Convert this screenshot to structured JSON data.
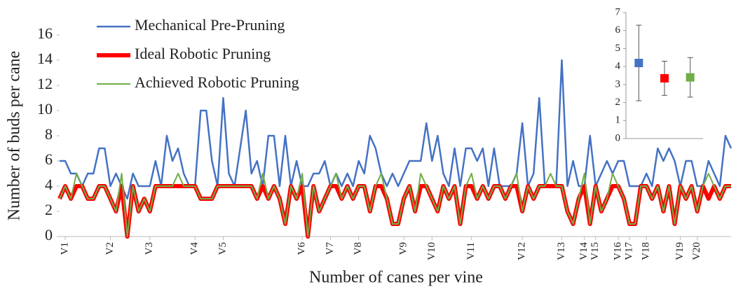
{
  "chart_data": [
    {
      "type": "line",
      "xlabel": "Number of canes per vine",
      "ylabel": "Number of buds per cane",
      "ylim": [
        0,
        16
      ],
      "yticks": [
        0,
        2,
        4,
        6,
        8,
        10,
        12,
        14,
        16
      ],
      "categories": [
        null,
        "V1",
        null,
        null,
        null,
        null,
        null,
        null,
        null,
        "V2",
        null,
        null,
        null,
        null,
        null,
        null,
        "V3",
        null,
        null,
        null,
        null,
        null,
        null,
        null,
        "V4",
        null,
        null,
        null,
        null,
        "V5",
        null,
        null,
        null,
        null,
        null,
        null,
        null,
        null,
        null,
        null,
        null,
        null,
        null,
        "V6",
        null,
        null,
        null,
        null,
        "V7",
        null,
        null,
        null,
        null,
        "V8",
        null,
        null,
        null,
        null,
        null,
        null,
        null,
        "V9",
        null,
        null,
        null,
        null,
        "V10",
        null,
        null,
        null,
        null,
        null,
        null,
        "V11",
        null,
        null,
        null,
        null,
        null,
        null,
        null,
        null,
        "V12",
        null,
        null,
        null,
        null,
        null,
        null,
        "V13",
        null,
        null,
        null,
        "V14",
        null,
        "V15",
        null,
        null,
        null,
        "V16",
        null,
        "V17",
        null,
        null,
        "V18",
        null,
        null,
        null,
        null,
        null,
        "V19",
        null,
        null,
        "V20",
        null,
        null,
        null,
        null,
        null,
        null
      ],
      "legend": "top-left",
      "series": [
        {
          "name": "Mechanical Pre-Pruning",
          "color": "#4472c4",
          "width": 2.5,
          "values": [
            6,
            6,
            5,
            5,
            4,
            5,
            5,
            7,
            7,
            4,
            5,
            4,
            3,
            5,
            4,
            4,
            4,
            6,
            4,
            8,
            6,
            7,
            5,
            4,
            4,
            10,
            10,
            6,
            4,
            11,
            5,
            4,
            7,
            10,
            5,
            6,
            4,
            8,
            8,
            4,
            8,
            4,
            6,
            4,
            4,
            5,
            5,
            6,
            4,
            5,
            4,
            5,
            4,
            6,
            5,
            8,
            7,
            5,
            4,
            5,
            4,
            5,
            6,
            6,
            6,
            9,
            6,
            8,
            5,
            4,
            7,
            4,
            7,
            7,
            6,
            7,
            4,
            7,
            4,
            4,
            4,
            5,
            9,
            4,
            5,
            11,
            4,
            4,
            4,
            14,
            4,
            6,
            4,
            4,
            8,
            4,
            5,
            6,
            5,
            6,
            6,
            4,
            4,
            4,
            5,
            4,
            7,
            6,
            7,
            6,
            4,
            6,
            6,
            4,
            4,
            6,
            5,
            4,
            8,
            7
          ]
        },
        {
          "name": "Ideal Robotic Pruning",
          "color": "#ff0000",
          "width": 6,
          "values": [
            3,
            4,
            3,
            4,
            4,
            3,
            3,
            4,
            4,
            3,
            2,
            4,
            0,
            4,
            2,
            3,
            2,
            4,
            4,
            4,
            4,
            4,
            4,
            4,
            4,
            3,
            3,
            3,
            4,
            4,
            4,
            4,
            4,
            4,
            4,
            3,
            4,
            3,
            4,
            3,
            1,
            4,
            3,
            4,
            0,
            4,
            2,
            3,
            4,
            4,
            3,
            4,
            3,
            4,
            4,
            2,
            4,
            4,
            3,
            1,
            1,
            3,
            4,
            2,
            4,
            4,
            3,
            2,
            4,
            3,
            4,
            1,
            4,
            4,
            3,
            4,
            3,
            4,
            4,
            3,
            4,
            4,
            2,
            4,
            3,
            4,
            4,
            4,
            4,
            4,
            2,
            1,
            3,
            4,
            1,
            4,
            2,
            3,
            4,
            4,
            3,
            1,
            1,
            4,
            4,
            3,
            4,
            2,
            4,
            1,
            4,
            3,
            4,
            2,
            4,
            3,
            4,
            3,
            4,
            4
          ]
        },
        {
          "name": "Achieved Robotic Pruning",
          "color": "#70ad47",
          "width": 2,
          "values": [
            3,
            4,
            3,
            5,
            4,
            3,
            3,
            4,
            4,
            3,
            2,
            5,
            0,
            4,
            2,
            3,
            2,
            4,
            4,
            4,
            4,
            5,
            4,
            4,
            4,
            3,
            3,
            3,
            4,
            4,
            4,
            4,
            4,
            4,
            4,
            3,
            5,
            3,
            4,
            3,
            1,
            4,
            3,
            5,
            0,
            4,
            2,
            3,
            4,
            5,
            3,
            4,
            3,
            4,
            4,
            2,
            4,
            5,
            3,
            1,
            1,
            3,
            4,
            2,
            5,
            4,
            3,
            2,
            4,
            3,
            4,
            1,
            4,
            5,
            3,
            4,
            3,
            4,
            4,
            3,
            4,
            5,
            2,
            4,
            3,
            4,
            4,
            5,
            4,
            4,
            2,
            1,
            3,
            5,
            1,
            4,
            2,
            3,
            5,
            4,
            3,
            1,
            1,
            4,
            4,
            3,
            4,
            2,
            4,
            1,
            4,
            3,
            4,
            2,
            4,
            5,
            4,
            3,
            4,
            4
          ]
        }
      ]
    },
    {
      "type": "errorbar",
      "ylim": [
        0,
        7
      ],
      "yticks": [
        0,
        1,
        2,
        3,
        4,
        5,
        6,
        7
      ],
      "colors": [
        "#4472c4",
        "#ff0000",
        "#70ad47"
      ],
      "values": [
        4.2,
        3.35,
        3.4
      ],
      "errors": [
        2.1,
        0.95,
        1.1
      ]
    }
  ]
}
